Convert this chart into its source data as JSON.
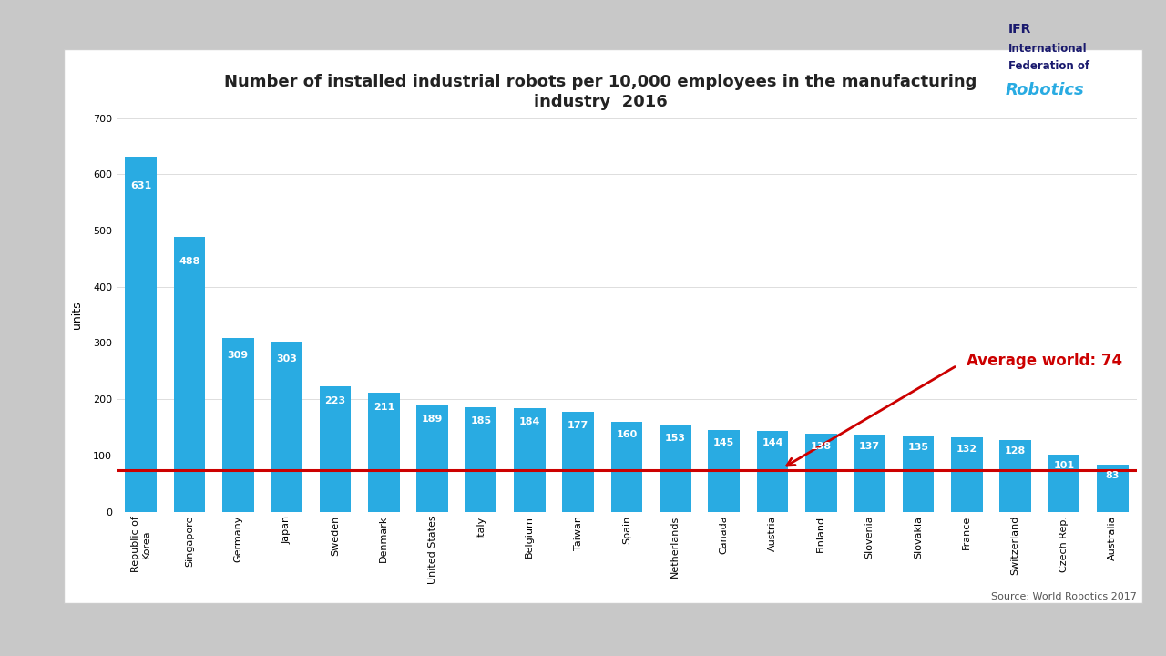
{
  "title_line1": "Number of installed industrial robots per 10,000 employees in the manufacturing",
  "title_line2": "industry  2016",
  "ylabel": "units",
  "source": "Source: World Robotics 2017",
  "avg_label": "Average world: 74",
  "avg_value": 74,
  "ylim": [
    0,
    700
  ],
  "yticks": [
    0,
    100,
    200,
    300,
    400,
    500,
    600,
    700
  ],
  "bar_color": "#29ABE2",
  "avg_line_color": "#CC0000",
  "avg_text_color": "#CC0000",
  "chart_bg": "#FFFFFF",
  "outer_bg": "#C8C8C8",
  "categories": [
    "Republic of\nKorea",
    "Singapore",
    "Germany",
    "Japan",
    "Sweden",
    "Denmark",
    "United States",
    "Italy",
    "Belgium",
    "Taiwan",
    "Spain",
    "Netherlands",
    "Canada",
    "Austria",
    "Finland",
    "Slovenia",
    "Slovakia",
    "France",
    "Switzerland",
    "Czech Rep.",
    "Australia"
  ],
  "values": [
    631,
    488,
    309,
    303,
    223,
    211,
    189,
    185,
    184,
    177,
    160,
    153,
    145,
    144,
    138,
    137,
    135,
    132,
    128,
    101,
    83
  ],
  "title_fontsize": 13,
  "label_fontsize": 8,
  "tick_fontsize": 8,
  "ylabel_fontsize": 9,
  "source_fontsize": 8,
  "avg_fontsize": 12
}
